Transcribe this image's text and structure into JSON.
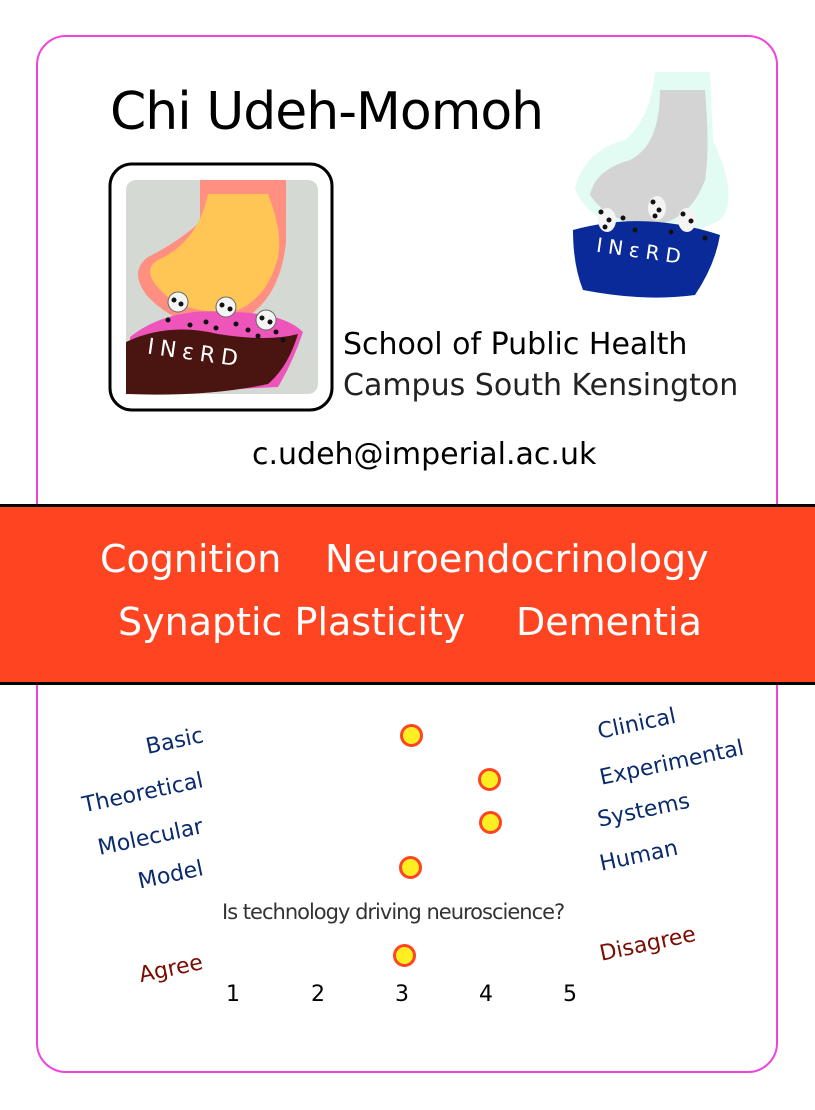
{
  "profile": {
    "name": "Chi Udeh-Momoh",
    "affiliation_line1": "School of Public Health",
    "affiliation_line2": "Campus South Kensington",
    "email": "c.udeh@imperial.ac.uk"
  },
  "logo_text": "INεRD",
  "keywords": [
    "Cognition",
    "Neuroendocrinology",
    "Synaptic Plasticity",
    "Dementia"
  ],
  "scales": [
    {
      "left": "Basic",
      "right": "Clinical",
      "value": 3
    },
    {
      "left": "Theoretical",
      "right": "Experimental",
      "value": 4
    },
    {
      "left": "Molecular",
      "right": "Systems",
      "value": 4
    },
    {
      "left": "Model",
      "right": "Human",
      "value": 3
    }
  ],
  "technology_question": {
    "question": "Is technology driving neuroscience?",
    "left": "Agree",
    "right": "Disagree",
    "value": 3
  },
  "scale_numbers": [
    "1",
    "2",
    "3",
    "4",
    "5"
  ],
  "colors": {
    "card_border": "#ee44dd",
    "band": "#ff4422",
    "label_blue": "#0a2a6e",
    "label_red": "#7a0c00",
    "dot_fill": "#ffee22",
    "dot_ring": "#ff4422"
  }
}
